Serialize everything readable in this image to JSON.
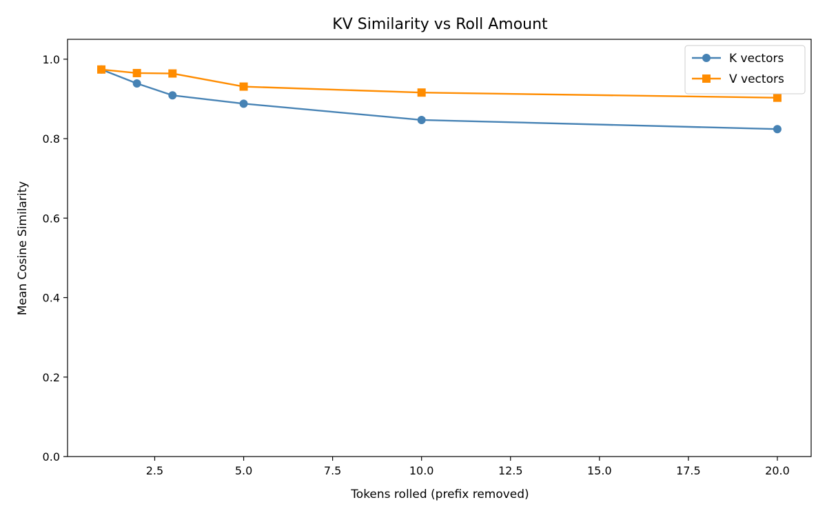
{
  "chart_data": {
    "type": "line",
    "title": "KV Similarity vs Roll Amount",
    "xlabel": "Tokens rolled (prefix removed)",
    "ylabel": "Mean Cosine Similarity",
    "xlim": [
      0.05,
      20.95
    ],
    "ylim": [
      0.0,
      1.05
    ],
    "xticks": [
      2.5,
      5.0,
      7.5,
      10.0,
      12.5,
      15.0,
      17.5,
      20.0
    ],
    "xtick_labels": [
      "2.5",
      "5.0",
      "7.5",
      "10.0",
      "12.5",
      "15.0",
      "17.5",
      "20.0"
    ],
    "yticks": [
      0.0,
      0.2,
      0.4,
      0.6,
      0.8,
      1.0
    ],
    "ytick_labels": [
      "0.0",
      "0.2",
      "0.4",
      "0.6",
      "0.8",
      "1.0"
    ],
    "grid": false,
    "legend_position": "top-right",
    "x": [
      1,
      2,
      3,
      5,
      10,
      20
    ],
    "series": [
      {
        "name": "K vectors",
        "marker": "circle",
        "color": "#4682b4",
        "values": [
          0.974,
          0.939,
          0.909,
          0.888,
          0.847,
          0.824
        ]
      },
      {
        "name": "V vectors",
        "marker": "square",
        "color": "#ff8c00",
        "values": [
          0.974,
          0.965,
          0.964,
          0.931,
          0.916,
          0.903
        ]
      }
    ]
  }
}
